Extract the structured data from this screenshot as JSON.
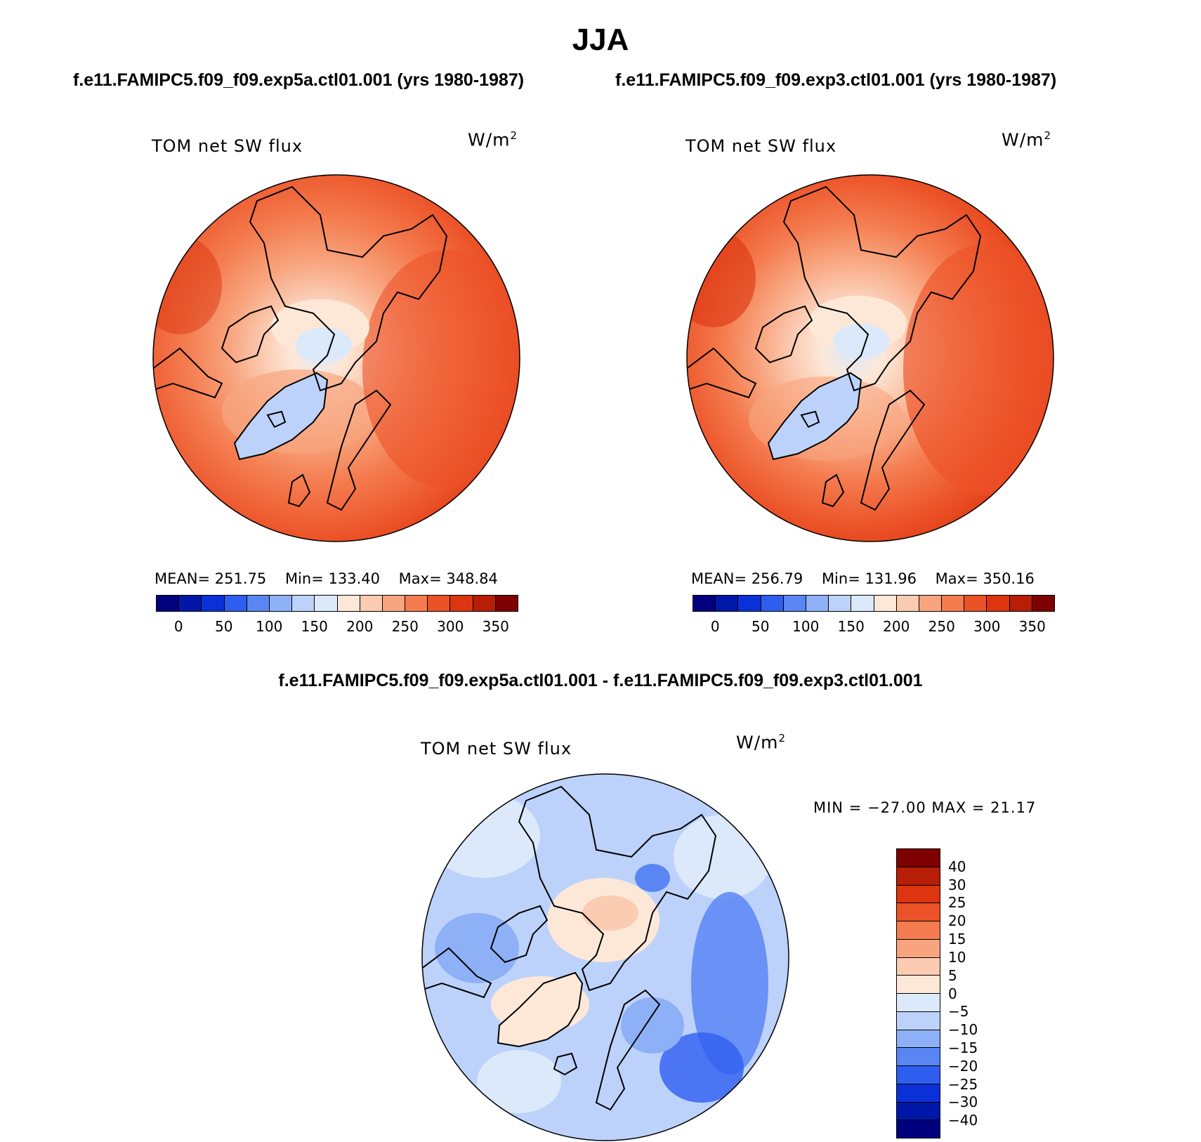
{
  "figure_title": "JJA",
  "case_a_title": "f.e11.FAMIPC5.f09_f09.exp5a.ctl01.001 (yrs 1980-1987)",
  "case_b_title": "f.e11.FAMIPC5.f09_f09.exp3.ctl01.001 (yrs 1980-1987)",
  "diff_title": "f.e11.FAMIPC5.f09_f09.exp5a.ctl01.001 - f.e11.FAMIPC5.f09_f09.exp3.ctl01.001",
  "panels": {
    "a": {
      "title": "TOM net SW flux",
      "units_base": "W/m",
      "units_sup": "2",
      "mean_label": "MEAN=",
      "mean": "251.75",
      "min_label": "Min=",
      "min": "133.40",
      "max_label": "Max=",
      "max": "348.84"
    },
    "b": {
      "title": "TOM net SW flux",
      "units_base": "W/m",
      "units_sup": "2",
      "mean_label": "MEAN=",
      "mean": "256.79",
      "min_label": "Min=",
      "min": "131.96",
      "max_label": "Max=",
      "max": "350.16"
    },
    "diff": {
      "title": "TOM net SW flux",
      "units_base": "W/m",
      "units_sup": "2",
      "minmax_text": "MIN = −27.00 MAX =  21.17"
    }
  },
  "abs_colorbar": {
    "colors": [
      "#00007f",
      "#0018a8",
      "#0a31d8",
      "#2e5ef0",
      "#5a86f4",
      "#8eb0f6",
      "#bdd2fa",
      "#dbe9fb",
      "#fde8d8",
      "#fbcbb2",
      "#f8a57f",
      "#f47c4f",
      "#ec5228",
      "#dc3510",
      "#b81d06",
      "#7f0000"
    ],
    "tick_labels": [
      "0",
      "50",
      "100",
      "150",
      "200",
      "250",
      "300",
      "350"
    ]
  },
  "diff_colorbar": {
    "colors": [
      "#7f0000",
      "#b81d06",
      "#dc3510",
      "#ec5228",
      "#f47c4f",
      "#f8a57f",
      "#fbcbb2",
      "#fde8d8",
      "#dbe9fb",
      "#bdd2fa",
      "#8eb0f6",
      "#5a86f4",
      "#2e5ef0",
      "#0a31d8",
      "#0018a8",
      "#00007f"
    ],
    "tick_labels": [
      "40",
      "30",
      "25",
      "20",
      "15",
      "10",
      "5",
      "0",
      "−5",
      "−10",
      "−15",
      "−20",
      "−25",
      "−30",
      "−40"
    ]
  },
  "colors": {
    "land_line": "#000000"
  }
}
